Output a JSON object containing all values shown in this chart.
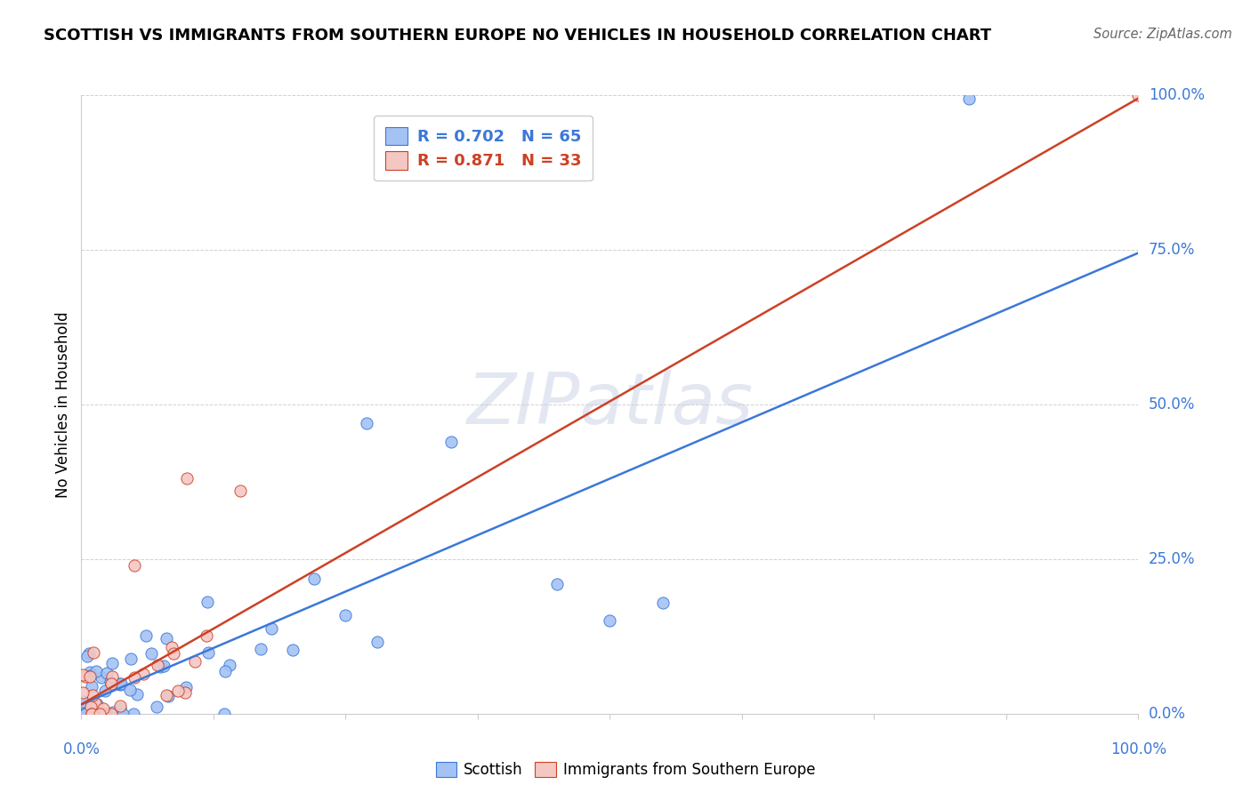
{
  "title": "SCOTTISH VS IMMIGRANTS FROM SOUTHERN EUROPE NO VEHICLES IN HOUSEHOLD CORRELATION CHART",
  "source": "Source: ZipAtlas.com",
  "ylabel": "No Vehicles in Household",
  "legend1_text": "R = 0.702   N = 65",
  "legend2_text": "R = 0.871   N = 33",
  "legend_label1": "Scottish",
  "legend_label2": "Immigrants from Southern Europe",
  "blue_color": "#a4c2f4",
  "pink_color": "#f4c7c3",
  "blue_edge_color": "#3c78d8",
  "pink_edge_color": "#cc4125",
  "blue_line_color": "#3c78d8",
  "pink_line_color": "#cc4125",
  "blue_r": 0.702,
  "blue_n": 65,
  "pink_r": 0.871,
  "pink_n": 33,
  "watermark": "ZIPatlas",
  "background_color": "#ffffff",
  "grid_color": "#cccccc",
  "tick_color": "#3c78d8",
  "xlim": [
    0,
    100
  ],
  "ylim": [
    0,
    100
  ],
  "blue_slope": 0.73,
  "blue_intercept": 1.5,
  "pink_slope": 0.98,
  "pink_intercept": 1.5
}
